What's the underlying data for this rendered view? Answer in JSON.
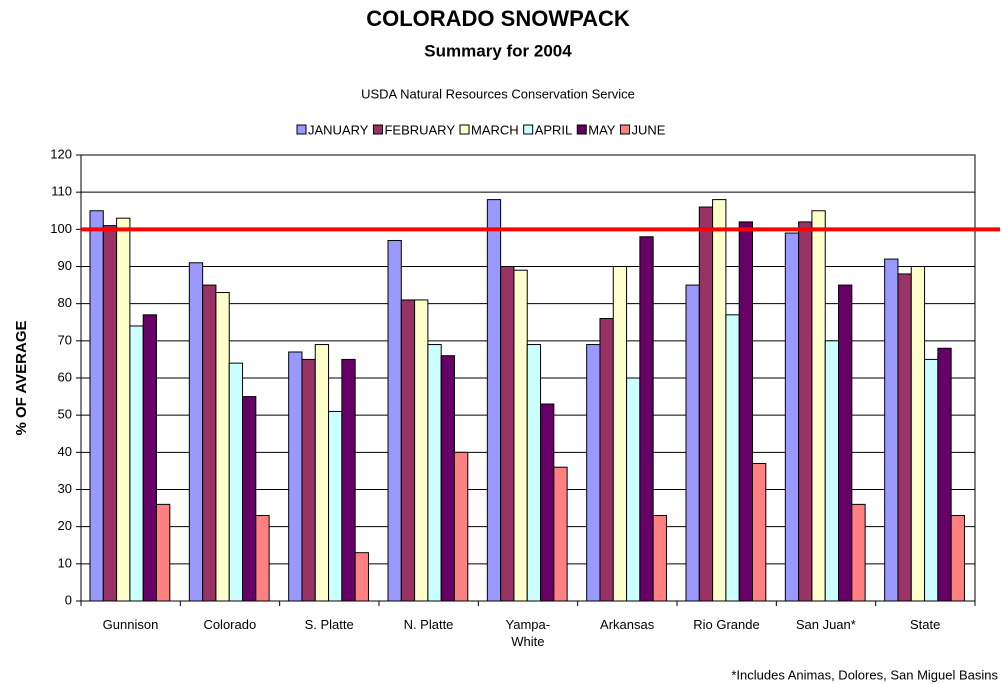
{
  "chart_data": {
    "type": "bar",
    "title": "COLORADO SNOWPACK",
    "subtitle": "Summary for 2004",
    "source": "USDA Natural Resources Conservation Service",
    "y_label": "% OF AVERAGE",
    "footnote": "*Includes Animas, Dolores, San Miguel Basins",
    "categories": [
      "Gunnison",
      "Colorado",
      "S. Platte",
      "N. Platte",
      "Yampa-\nWhite",
      "Arkansas",
      "Rio Grande",
      "San Juan*",
      "State"
    ],
    "series": [
      {
        "name": "JANUARY",
        "color": "#9999ff",
        "values": [
          105,
          91,
          67,
          97,
          108,
          69,
          85,
          99,
          92
        ]
      },
      {
        "name": "FEBRUARY",
        "color": "#993366",
        "values": [
          101,
          85,
          65,
          81,
          90,
          76,
          106,
          102,
          88
        ]
      },
      {
        "name": "MARCH",
        "color": "#ffffcc",
        "values": [
          103,
          83,
          69,
          81,
          89,
          90,
          108,
          105,
          90
        ]
      },
      {
        "name": "APRIL",
        "color": "#ccffff",
        "values": [
          74,
          64,
          51,
          69,
          69,
          60,
          77,
          70,
          65
        ]
      },
      {
        "name": "MAY",
        "color": "#660066",
        "values": [
          77,
          55,
          65,
          66,
          53,
          98,
          102,
          85,
          68
        ]
      },
      {
        "name": "JUNE",
        "color": "#ff8080",
        "values": [
          26,
          23,
          13,
          40,
          36,
          23,
          37,
          26,
          23
        ]
      }
    ],
    "reference_line": 100,
    "reference_color": "#ff0000",
    "ylim": [
      0,
      120
    ],
    "yticks": [
      0,
      10,
      20,
      30,
      40,
      50,
      60,
      70,
      80,
      90,
      100,
      110,
      120
    ],
    "grid": true,
    "legend": "top"
  }
}
